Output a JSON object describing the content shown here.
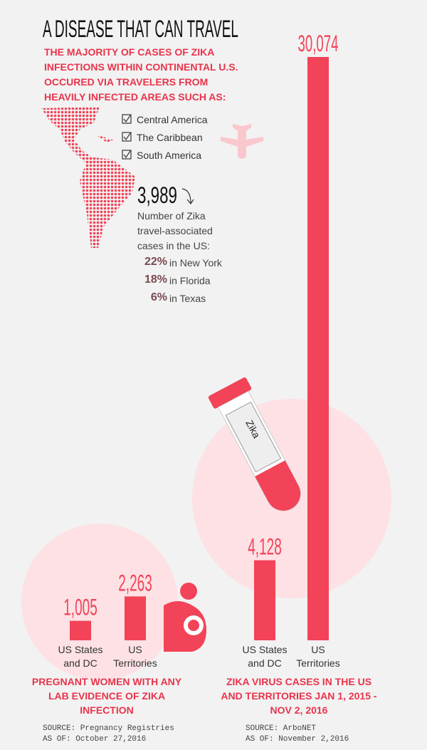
{
  "title": "A DISEASE THAT CAN TRAVEL",
  "intro": "THE MAJORITY OF CASES OF ZIKA INFECTIONS WITHIN CONTINENTAL U.S. OCCURED VIA TRAVELERS FROM HEAVILY INFECTED AREAS SUCH AS:",
  "regions": [
    "Central America",
    "The Caribbean",
    "South America"
  ],
  "travel": {
    "total": "3,989",
    "description": "Number of Zika travel-associated cases in the US:",
    "shares": [
      {
        "share": "22%",
        "place": "in New York"
      },
      {
        "share": "18%",
        "place": "in Florida"
      },
      {
        "share": "6%",
        "place": "in Texas"
      }
    ]
  },
  "tube_label": "Zika",
  "chart_data": [
    {
      "type": "bar",
      "title": "PREGNANT WOMEN WITH ANY LAB EVIDENCE OF ZIKA INFECTION",
      "categories": [
        "US States and DC",
        "US Territories"
      ],
      "values": [
        1005,
        2263
      ],
      "value_labels": [
        "1,005",
        "2,263"
      ],
      "color": "#f24358",
      "source": "SOURCE: Pregnancy Registries",
      "as_of": "AS OF: October 27,2016"
    },
    {
      "type": "bar",
      "title": "ZIKA VIRUS CASES IN THE US AND TERRITORIES JAN 1, 2015 - NOV 2, 2016",
      "categories": [
        "US States and DC",
        "US Territories"
      ],
      "values": [
        4128,
        30074
      ],
      "value_labels": [
        "4,128",
        "30,074"
      ],
      "color": "#f24358",
      "source": "SOURCE: ArboNET",
      "as_of": "AS OF: November 2,2016"
    }
  ]
}
